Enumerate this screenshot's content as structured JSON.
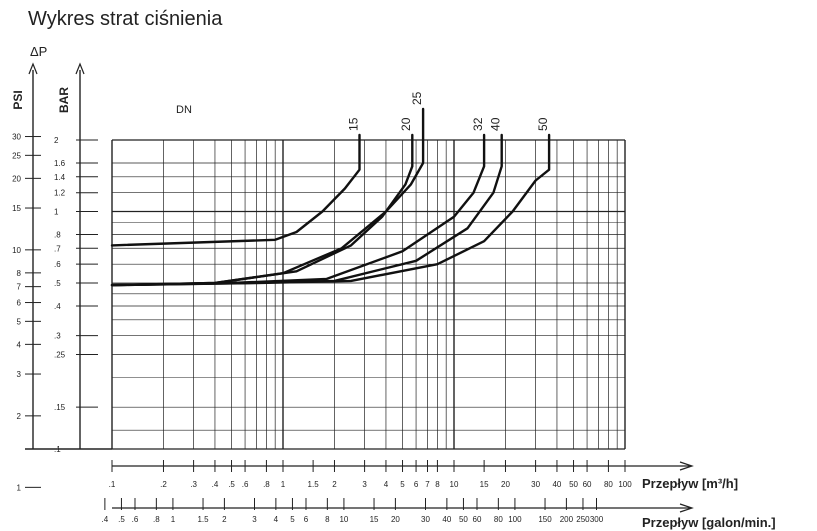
{
  "title": "Wykres strat ciśnienia",
  "chart_data": {
    "type": "line",
    "title": "Wykres strat ciśnienia",
    "dp_label": "ΔP",
    "psi_label": "PSI",
    "bar_label": "BAR",
    "dn_label": "DN",
    "x_label_m3h": "Przepływ [m³/h]",
    "x_label_gpm": "Przepływ [galon/min.]",
    "xscale": "log",
    "yscale": "log",
    "xlim": [
      0.1,
      100
    ],
    "ylim": [
      0.1,
      2
    ],
    "grid": true,
    "bar_ticks": [
      {
        "v": 2,
        "label": "2"
      },
      {
        "v": 1.6,
        "label": "1.6"
      },
      {
        "v": 1.4,
        "label": "1.4"
      },
      {
        "v": 1.2,
        "label": "1.2"
      },
      {
        "v": 1,
        "label": "1"
      },
      {
        "v": 0.8,
        "label": ".8"
      },
      {
        "v": 0.7,
        "label": ".7"
      },
      {
        "v": 0.6,
        "label": ".6"
      },
      {
        "v": 0.5,
        "label": ".5"
      },
      {
        "v": 0.4,
        "label": ".4"
      },
      {
        "v": 0.3,
        "label": ".3"
      },
      {
        "v": 0.25,
        "label": ".25"
      },
      {
        "v": 0.15,
        "label": ".15"
      },
      {
        "v": 0.1,
        "label": ".1"
      }
    ],
    "psi_ticks": [
      {
        "v": 30,
        "label": "30"
      },
      {
        "v": 25,
        "label": "25"
      },
      {
        "v": 20,
        "label": "20"
      },
      {
        "v": 15,
        "label": "15"
      },
      {
        "v": 10,
        "label": "10"
      },
      {
        "v": 8,
        "label": "8"
      },
      {
        "v": 7,
        "label": "7"
      },
      {
        "v": 6,
        "label": "6"
      },
      {
        "v": 5,
        "label": "5"
      },
      {
        "v": 4,
        "label": "4"
      },
      {
        "v": 3,
        "label": "3"
      },
      {
        "v": 2,
        "label": "2"
      },
      {
        "v": 1,
        "label": "1"
      }
    ],
    "m3h_ticks": [
      {
        "v": 0.1,
        "label": ".1"
      },
      {
        "v": 0.2,
        "label": ".2"
      },
      {
        "v": 0.3,
        "label": ".3"
      },
      {
        "v": 0.4,
        "label": ".4"
      },
      {
        "v": 0.5,
        "label": ".5"
      },
      {
        "v": 0.6,
        "label": ".6"
      },
      {
        "v": 0.8,
        "label": ".8"
      },
      {
        "v": 1,
        "label": "1"
      },
      {
        "v": 1.5,
        "label": "1.5"
      },
      {
        "v": 2,
        "label": "2"
      },
      {
        "v": 3,
        "label": "3"
      },
      {
        "v": 4,
        "label": "4"
      },
      {
        "v": 5,
        "label": "5"
      },
      {
        "v": 6,
        "label": "6"
      },
      {
        "v": 7,
        "label": "7"
      },
      {
        "v": 8,
        "label": "8"
      },
      {
        "v": 10,
        "label": "10"
      },
      {
        "v": 15,
        "label": "15"
      },
      {
        "v": 20,
        "label": "20"
      },
      {
        "v": 30,
        "label": "30"
      },
      {
        "v": 40,
        "label": "40"
      },
      {
        "v": 50,
        "label": "50"
      },
      {
        "v": 60,
        "label": "60"
      },
      {
        "v": 80,
        "label": "80"
      },
      {
        "v": 100,
        "label": "100"
      }
    ],
    "gpm_ticks": [
      {
        "v": 0.4,
        "label": ".4"
      },
      {
        "v": 0.5,
        "label": ".5"
      },
      {
        "v": 0.6,
        "label": ".6"
      },
      {
        "v": 0.8,
        "label": ".8"
      },
      {
        "v": 1,
        "label": "1"
      },
      {
        "v": 1.5,
        "label": "1.5"
      },
      {
        "v": 2,
        "label": "2"
      },
      {
        "v": 3,
        "label": "3"
      },
      {
        "v": 4,
        "label": "4"
      },
      {
        "v": 5,
        "label": "5"
      },
      {
        "v": 6,
        "label": "6"
      },
      {
        "v": 8,
        "label": "8"
      },
      {
        "v": 10,
        "label": "10"
      },
      {
        "v": 15,
        "label": "15"
      },
      {
        "v": 20,
        "label": "20"
      },
      {
        "v": 30,
        "label": "30"
      },
      {
        "v": 40,
        "label": "40"
      },
      {
        "v": 50,
        "label": "50"
      },
      {
        "v": 60,
        "label": "60"
      },
      {
        "v": 80,
        "label": "80"
      },
      {
        "v": 100,
        "label": "100"
      },
      {
        "v": 150,
        "label": "150"
      },
      {
        "v": 200,
        "label": "200"
      },
      {
        "v": 250,
        "label": "250"
      },
      {
        "v": 300,
        "label": "300"
      }
    ],
    "series": [
      {
        "name": "15",
        "points": [
          [
            0.1,
            0.72
          ],
          [
            0.9,
            0.76
          ],
          [
            1.2,
            0.82
          ],
          [
            1.7,
            1.0
          ],
          [
            2.3,
            1.25
          ],
          [
            2.8,
            1.5
          ],
          [
            2.8,
            2.1
          ]
        ]
      },
      {
        "name": "20",
        "points": [
          [
            0.1,
            0.49
          ],
          [
            0.4,
            0.5
          ],
          [
            1.2,
            0.56
          ],
          [
            2.5,
            0.72
          ],
          [
            3.8,
            0.95
          ],
          [
            5.2,
            1.3
          ],
          [
            5.7,
            1.55
          ],
          [
            5.7,
            2.1
          ]
        ]
      },
      {
        "name": "25",
        "points": [
          [
            0.1,
            0.49
          ],
          [
            0.4,
            0.5
          ],
          [
            1.0,
            0.55
          ],
          [
            2.2,
            0.7
          ],
          [
            4.0,
            1.0
          ],
          [
            5.6,
            1.3
          ],
          [
            6.6,
            1.6
          ],
          [
            6.6,
            2.7
          ]
        ]
      },
      {
        "name": "32",
        "points": [
          [
            0.1,
            0.49
          ],
          [
            0.5,
            0.5
          ],
          [
            1.8,
            0.52
          ],
          [
            5.0,
            0.68
          ],
          [
            10.0,
            0.95
          ],
          [
            13.0,
            1.2
          ],
          [
            15.0,
            1.55
          ],
          [
            15.0,
            2.1
          ]
        ]
      },
      {
        "name": "40",
        "points": [
          [
            0.1,
            0.49
          ],
          [
            0.6,
            0.5
          ],
          [
            2.0,
            0.51
          ],
          [
            6.0,
            0.62
          ],
          [
            12.0,
            0.85
          ],
          [
            17.0,
            1.2
          ],
          [
            19.0,
            1.55
          ],
          [
            19.0,
            2.1
          ]
        ]
      },
      {
        "name": "50",
        "points": [
          [
            0.1,
            0.49
          ],
          [
            0.7,
            0.5
          ],
          [
            2.5,
            0.51
          ],
          [
            8.0,
            0.6
          ],
          [
            15.0,
            0.75
          ],
          [
            22.0,
            1.0
          ],
          [
            30.0,
            1.35
          ],
          [
            36.0,
            1.5
          ],
          [
            36.0,
            2.1
          ]
        ]
      }
    ]
  }
}
